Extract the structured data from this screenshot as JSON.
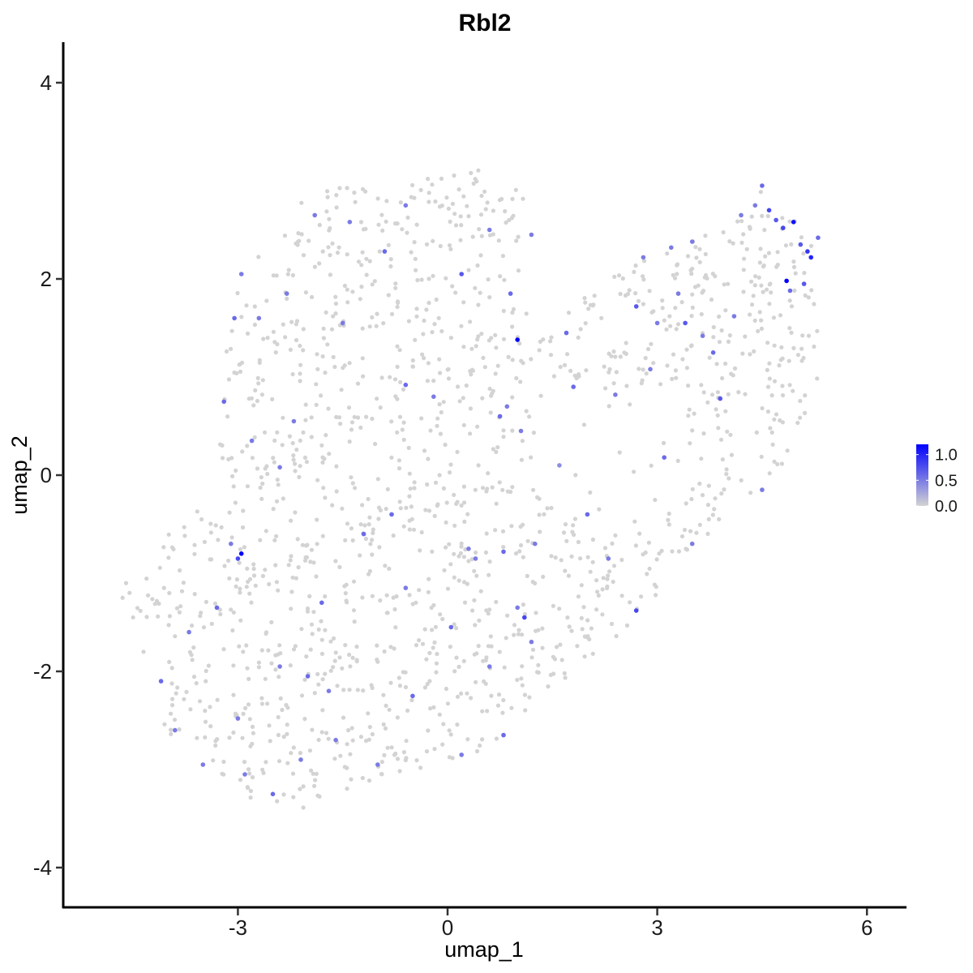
{
  "chart_data": {
    "type": "scatter",
    "title": "Rbl2",
    "xlabel": "umap_1",
    "ylabel": "umap_2",
    "xlim": [
      -5.3,
      6.6
    ],
    "ylim": [
      -4.4,
      4.4
    ],
    "x_ticks": [
      -3,
      0,
      3,
      6
    ],
    "x_tick_labels": [
      "-3",
      "0",
      "3",
      "6"
    ],
    "y_ticks": [
      4,
      2,
      0,
      -2,
      -4
    ],
    "y_tick_labels": [
      "4",
      "2",
      "0",
      "-2",
      "-4"
    ],
    "grid": false,
    "legend": {
      "placement": "right",
      "type": "colorbar",
      "range": [
        0,
        1.2
      ],
      "ticks": [
        1.0,
        0.5,
        0.0
      ],
      "tick_labels": [
        "1.0",
        "0.5",
        "0.0"
      ],
      "low_color": "#d3d3d3",
      "high_color": "#0000ff"
    },
    "point_color_low": "#d3d3d3",
    "point_color_high": "#0000ff",
    "expressing_points": [
      [
        -2.95,
        -0.8,
        1.2
      ],
      [
        -3.0,
        -0.85,
        0.8
      ],
      [
        1.0,
        1.38,
        1.2
      ],
      [
        4.85,
        1.98,
        1.2
      ],
      [
        4.95,
        2.58,
        1.1
      ],
      [
        5.2,
        2.22,
        1.0
      ],
      [
        5.15,
        2.28,
        0.9
      ],
      [
        4.6,
        2.7,
        0.8
      ],
      [
        4.7,
        2.6,
        0.7
      ],
      [
        4.8,
        2.52,
        0.8
      ],
      [
        5.05,
        2.35,
        0.7
      ],
      [
        5.3,
        2.42,
        0.6
      ],
      [
        5.1,
        1.95,
        0.7
      ],
      [
        4.9,
        1.88,
        0.6
      ],
      [
        4.5,
        2.95,
        0.6
      ],
      [
        4.4,
        2.75,
        0.5
      ],
      [
        4.2,
        2.65,
        0.5
      ],
      [
        3.5,
        2.38,
        0.5
      ],
      [
        3.2,
        2.32,
        0.5
      ],
      [
        2.7,
        1.72,
        0.7
      ],
      [
        2.8,
        2.22,
        0.5
      ],
      [
        3.4,
        1.55,
        0.7
      ],
      [
        3.8,
        1.25,
        0.6
      ],
      [
        3.9,
        0.78,
        0.7
      ],
      [
        3.65,
        1.42,
        0.5
      ],
      [
        4.1,
        1.62,
        0.5
      ],
      [
        2.9,
        1.08,
        0.5
      ],
      [
        1.7,
        1.45,
        0.6
      ],
      [
        0.85,
        0.7,
        0.5
      ],
      [
        0.75,
        0.6,
        0.6
      ],
      [
        1.05,
        0.45,
        0.5
      ],
      [
        0.2,
        2.05,
        0.7
      ],
      [
        -0.6,
        0.92,
        0.6
      ],
      [
        -1.5,
        1.55,
        0.5
      ],
      [
        -1.4,
        2.58,
        0.5
      ],
      [
        -1.9,
        2.65,
        0.5
      ],
      [
        -2.3,
        1.85,
        0.5
      ],
      [
        -2.7,
        1.6,
        0.5
      ],
      [
        -2.95,
        2.05,
        0.5
      ],
      [
        -3.05,
        1.6,
        0.6
      ],
      [
        -3.2,
        0.75,
        0.6
      ],
      [
        -2.4,
        0.08,
        0.5
      ],
      [
        -2.2,
        0.55,
        0.5
      ],
      [
        -0.8,
        -0.4,
        0.6
      ],
      [
        -1.2,
        -0.6,
        0.6
      ],
      [
        0.3,
        -0.75,
        0.5
      ],
      [
        0.8,
        -0.78,
        0.6
      ],
      [
        1.25,
        -0.7,
        0.5
      ],
      [
        2.0,
        -0.4,
        0.6
      ],
      [
        2.3,
        -0.85,
        0.5
      ],
      [
        2.7,
        -1.38,
        0.8
      ],
      [
        3.5,
        -0.7,
        0.5
      ],
      [
        4.5,
        -0.15,
        0.5
      ],
      [
        3.1,
        0.18,
        0.6
      ],
      [
        1.1,
        -1.45,
        0.8
      ],
      [
        0.6,
        -1.95,
        0.5
      ],
      [
        0.8,
        -2.65,
        0.6
      ],
      [
        0.2,
        -2.85,
        0.5
      ],
      [
        -0.5,
        -2.25,
        0.6
      ],
      [
        -1.0,
        -2.95,
        0.5
      ],
      [
        -1.6,
        -2.7,
        0.5
      ],
      [
        -2.5,
        -3.25,
        0.6
      ],
      [
        -2.9,
        -3.05,
        0.5
      ],
      [
        -3.5,
        -2.95,
        0.5
      ],
      [
        -4.1,
        -2.1,
        0.6
      ],
      [
        -3.9,
        -2.6,
        0.5
      ],
      [
        -3.7,
        -1.6,
        0.5
      ],
      [
        -3.3,
        -1.35,
        0.6
      ],
      [
        -2.4,
        -1.95,
        0.5
      ],
      [
        -1.8,
        -1.3,
        0.6
      ],
      [
        -0.6,
        -1.15,
        0.5
      ],
      [
        0.05,
        -1.55,
        0.6
      ],
      [
        1.0,
        -1.35,
        0.5
      ],
      [
        1.2,
        -1.7,
        0.5
      ],
      [
        -2.0,
        -2.05,
        0.6
      ],
      [
        -3.0,
        -2.48,
        0.5
      ],
      [
        0.4,
        -0.85,
        0.5
      ],
      [
        -0.2,
        0.8,
        0.5
      ],
      [
        1.8,
        0.9,
        0.6
      ],
      [
        2.4,
        0.82,
        0.5
      ],
      [
        3.3,
        1.85,
        0.5
      ],
      [
        3.0,
        1.55,
        0.5
      ],
      [
        -0.9,
        2.28,
        0.6
      ],
      [
        -0.6,
        2.75,
        0.5
      ],
      [
        0.6,
        2.5,
        0.5
      ],
      [
        1.2,
        2.45,
        0.5
      ],
      [
        -2.8,
        0.35,
        0.5
      ],
      [
        -3.1,
        -0.7,
        0.5
      ],
      [
        0.9,
        1.85,
        0.6
      ],
      [
        1.6,
        0.1,
        0.4
      ],
      [
        -1.7,
        -2.2,
        0.5
      ],
      [
        -2.1,
        -2.9,
        0.5
      ]
    ]
  }
}
